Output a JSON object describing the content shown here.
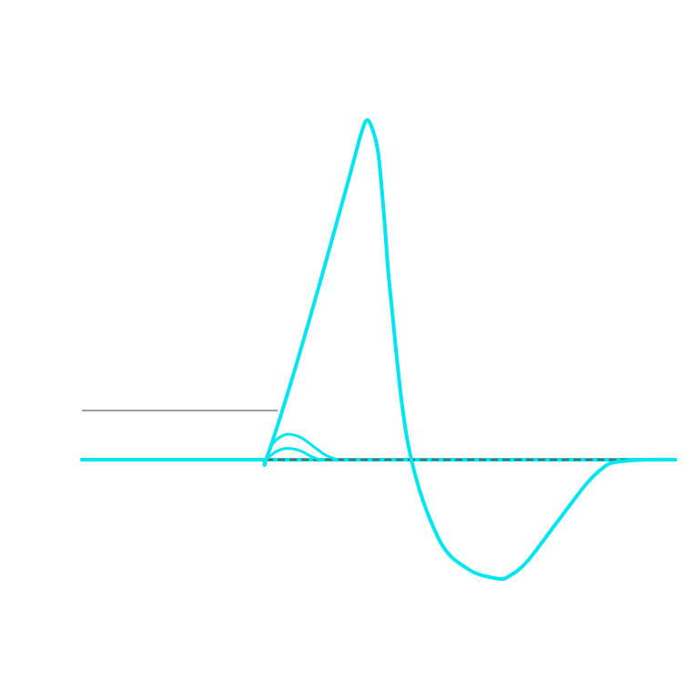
{
  "chart_data": {
    "type": "line",
    "title": "",
    "xlabel": "",
    "ylabel": "",
    "grid": false,
    "legend": "none",
    "xlim": [
      0,
      10
    ],
    "ylim": [
      -0.6,
      1.8
    ],
    "reference_lines": [
      {
        "kind": "baseline",
        "y": 0.0,
        "x_from": 0,
        "x_to": 10,
        "style": "solid",
        "color": "#00e5ee"
      },
      {
        "kind": "threshold",
        "y": 0.2,
        "x_from": 0,
        "x_to": 3.3,
        "style": "solid",
        "color": "#7f7f7f"
      },
      {
        "kind": "zero-dashed",
        "y": 0.0,
        "x_from": 3.1,
        "x_to": 10,
        "style": "dashed",
        "color": "#666666"
      }
    ],
    "series": [
      {
        "color": "#00e5ee",
        "x": [
          0,
          1,
          2,
          3,
          3.1,
          3.5,
          4.0,
          4.5,
          4.7,
          4.8,
          4.9,
          5.0,
          5.1,
          5.2,
          5.5,
          6.0,
          6.5,
          7.0,
          7.2,
          7.5,
          8.0,
          8.5,
          8.8,
          9.0,
          9.5,
          10
        ],
        "y": [
          0,
          0,
          0,
          0,
          0.0,
          0.3,
          0.72,
          1.16,
          1.34,
          1.4,
          1.36,
          1.25,
          0.98,
          0.68,
          0.06,
          -0.32,
          -0.45,
          -0.49,
          -0.48,
          -0.42,
          -0.26,
          -0.1,
          -0.03,
          -0.01,
          0,
          0
        ]
      },
      {
        "color": "#00e5ee",
        "x": [
          3.1,
          3.2,
          3.35,
          3.5,
          3.7,
          3.9,
          4.1,
          4.3
        ],
        "y": [
          0.0,
          0.06,
          0.095,
          0.105,
          0.09,
          0.055,
          0.02,
          0.0
        ]
      },
      {
        "color": "#00e5ee",
        "x": [
          3.1,
          3.25,
          3.4,
          3.55,
          3.7,
          3.85,
          4.0
        ],
        "y": [
          0.0,
          0.03,
          0.045,
          0.045,
          0.035,
          0.015,
          0.0
        ]
      }
    ]
  }
}
